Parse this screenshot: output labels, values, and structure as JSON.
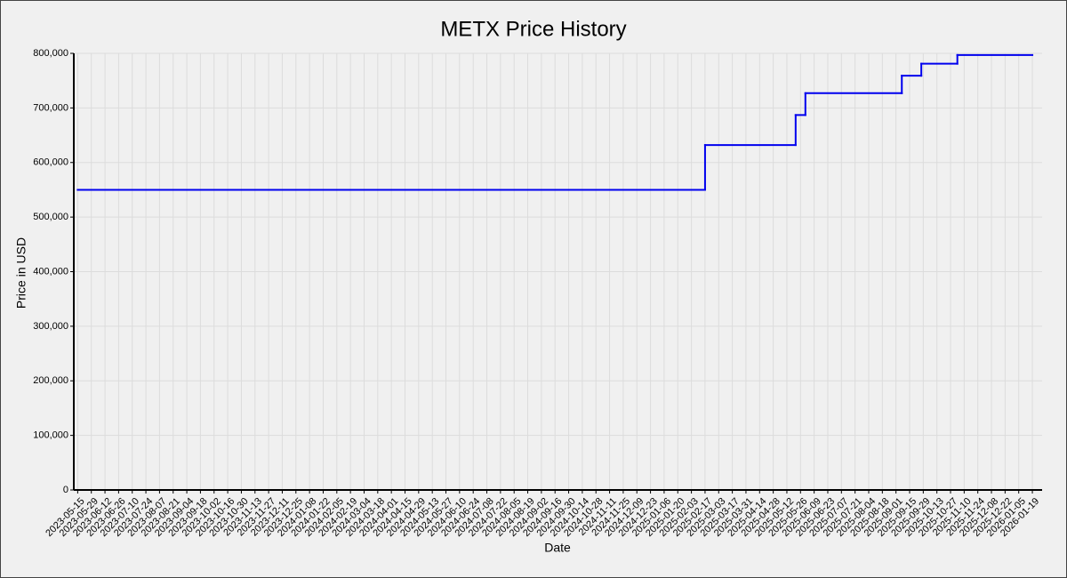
{
  "chart_data": {
    "type": "step-line",
    "title": "METX Price History",
    "x_label": "Date",
    "y_label": "Price in USD",
    "series": [
      {
        "name": "METX",
        "color": "#0000ee",
        "x": [
          "2023-05-15",
          "2025-02-17",
          "2025-05-21",
          "2025-05-31",
          "2025-09-07",
          "2025-09-27",
          "2025-11-03",
          "2026-01-19"
        ],
        "values": [
          550000,
          632000,
          687000,
          727000,
          759000,
          781000,
          797000,
          797000
        ]
      }
    ],
    "xlim": [
      "2023-05-11",
      "2026-01-29"
    ],
    "xticks": [
      "2023-05-15",
      "2023-05-29",
      "2023-06-12",
      "2023-06-26",
      "2023-07-10",
      "2023-07-24",
      "2023-08-07",
      "2023-08-21",
      "2023-09-04",
      "2023-09-18",
      "2023-10-02",
      "2023-10-16",
      "2023-10-30",
      "2023-11-13",
      "2023-11-27",
      "2023-12-11",
      "2023-12-25",
      "2024-01-08",
      "2024-01-22",
      "2024-02-05",
      "2024-02-19",
      "2024-03-04",
      "2024-03-18",
      "2024-04-01",
      "2024-04-15",
      "2024-04-29",
      "2024-05-13",
      "2024-05-27",
      "2024-06-10",
      "2024-06-24",
      "2024-07-08",
      "2024-07-22",
      "2024-08-05",
      "2024-08-19",
      "2024-09-02",
      "2024-09-16",
      "2024-09-30",
      "2024-10-14",
      "2024-10-28",
      "2024-11-11",
      "2024-11-25",
      "2024-12-09",
      "2024-12-23",
      "2025-01-06",
      "2025-01-20",
      "2025-02-03",
      "2025-02-17",
      "2025-03-03",
      "2025-03-17",
      "2025-03-31",
      "2025-04-14",
      "2025-04-28",
      "2025-05-12",
      "2025-05-26",
      "2025-06-09",
      "2025-06-23",
      "2025-07-07",
      "2025-07-21",
      "2025-08-04",
      "2025-08-18",
      "2025-09-01",
      "2025-09-15",
      "2025-09-29",
      "2025-10-13",
      "2025-10-27",
      "2025-11-10",
      "2025-11-24",
      "2025-12-08",
      "2025-12-22",
      "2026-01-05",
      "2026-01-19"
    ],
    "ylim": [
      0,
      800000
    ],
    "yticks": [
      {
        "value": 0,
        "label": "0"
      },
      {
        "value": 100000,
        "label": "100,000"
      },
      {
        "value": 200000,
        "label": "200,000"
      },
      {
        "value": 300000,
        "label": "300,000"
      },
      {
        "value": 400000,
        "label": "400,000"
      },
      {
        "value": 500000,
        "label": "500,000"
      },
      {
        "value": 600000,
        "label": "600,000"
      },
      {
        "value": 700000,
        "label": "700,000"
      },
      {
        "value": 800000,
        "label": "800,000"
      }
    ],
    "grid": true
  }
}
